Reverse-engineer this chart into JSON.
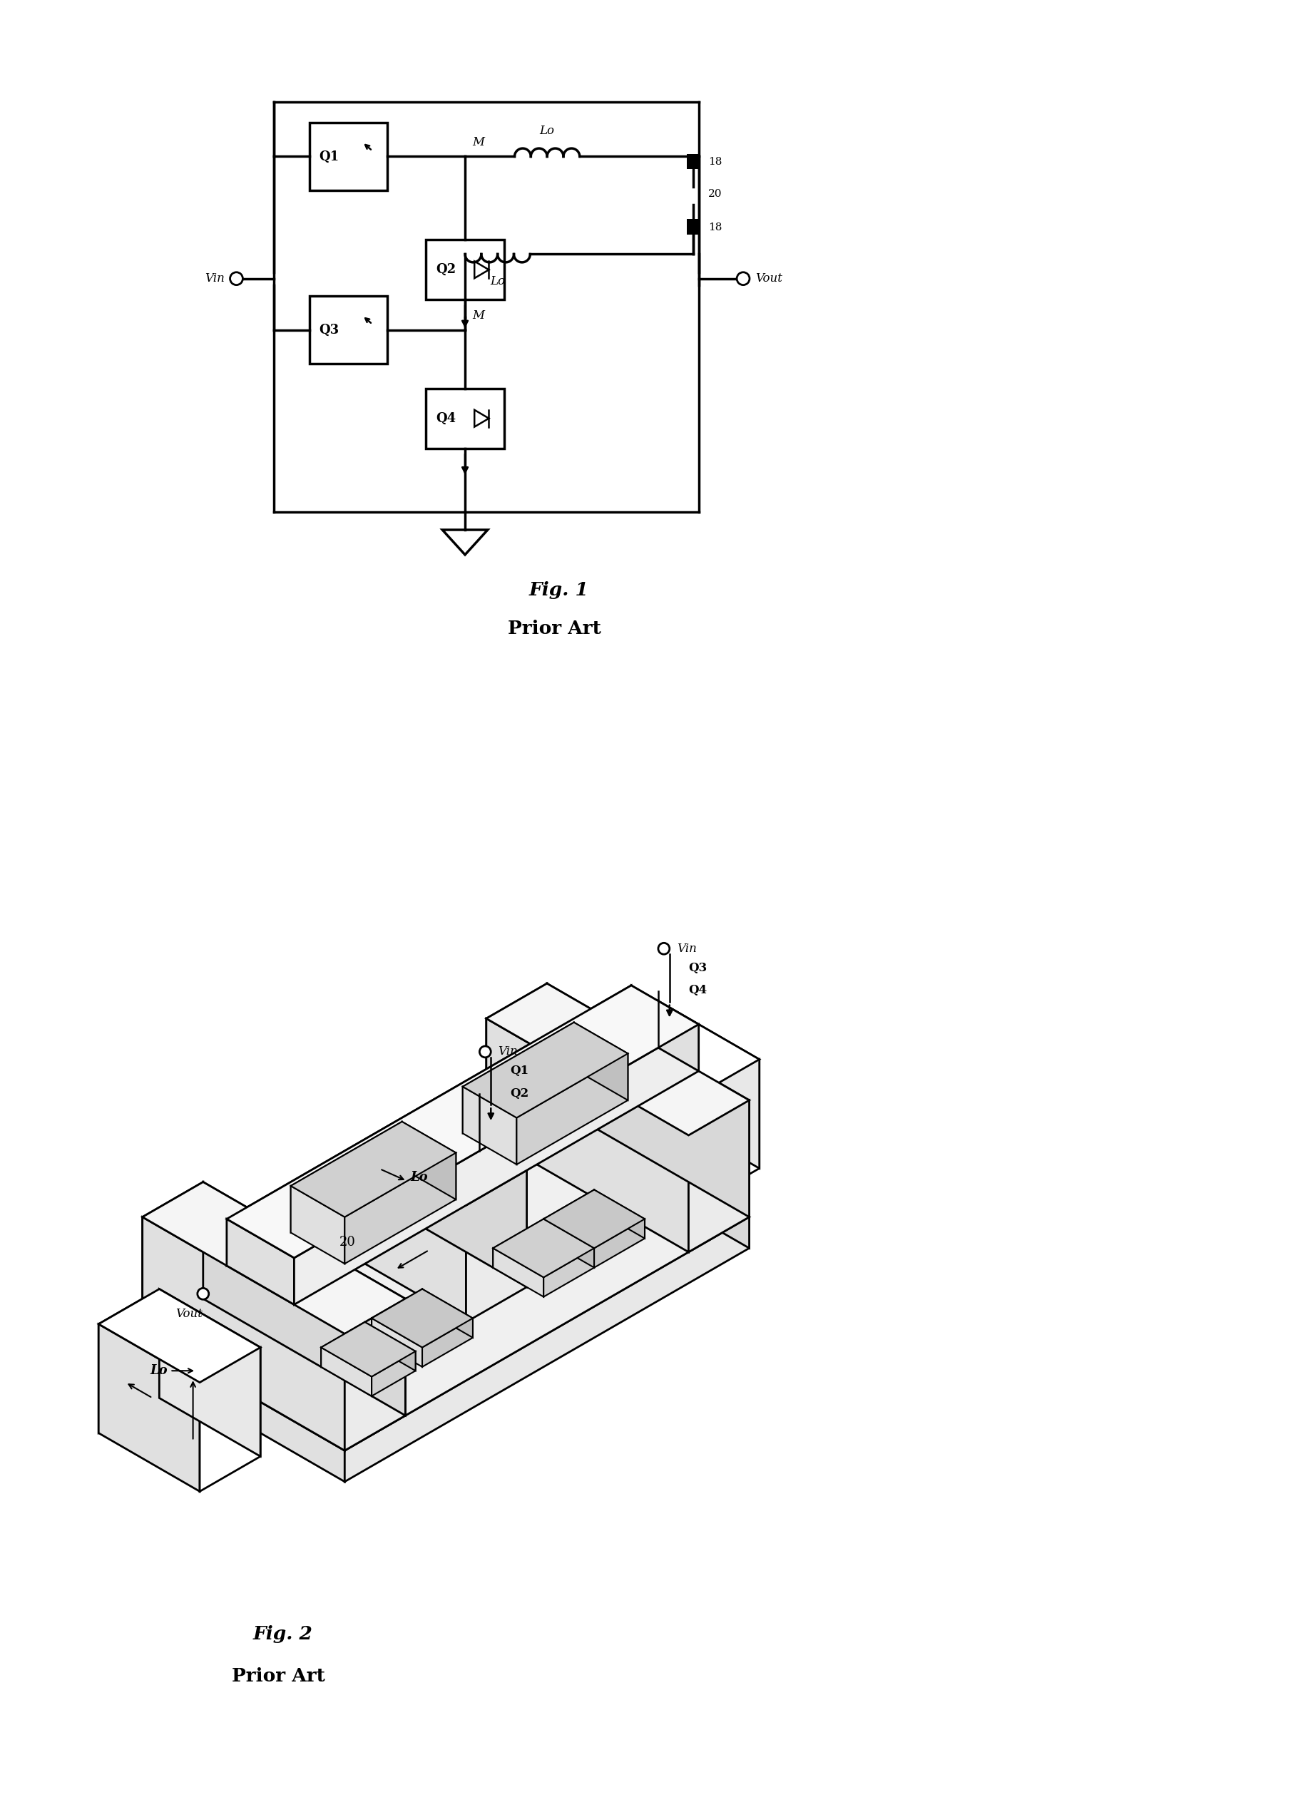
{
  "fig_width": 18.34,
  "fig_height": 25.34,
  "bg_color": "#ffffff",
  "fig1_caption": "Fig. 1",
  "fig1_subcaption": "Prior Art",
  "fig2_caption": "Fig. 2",
  "fig2_subcaption": "Prior Art"
}
